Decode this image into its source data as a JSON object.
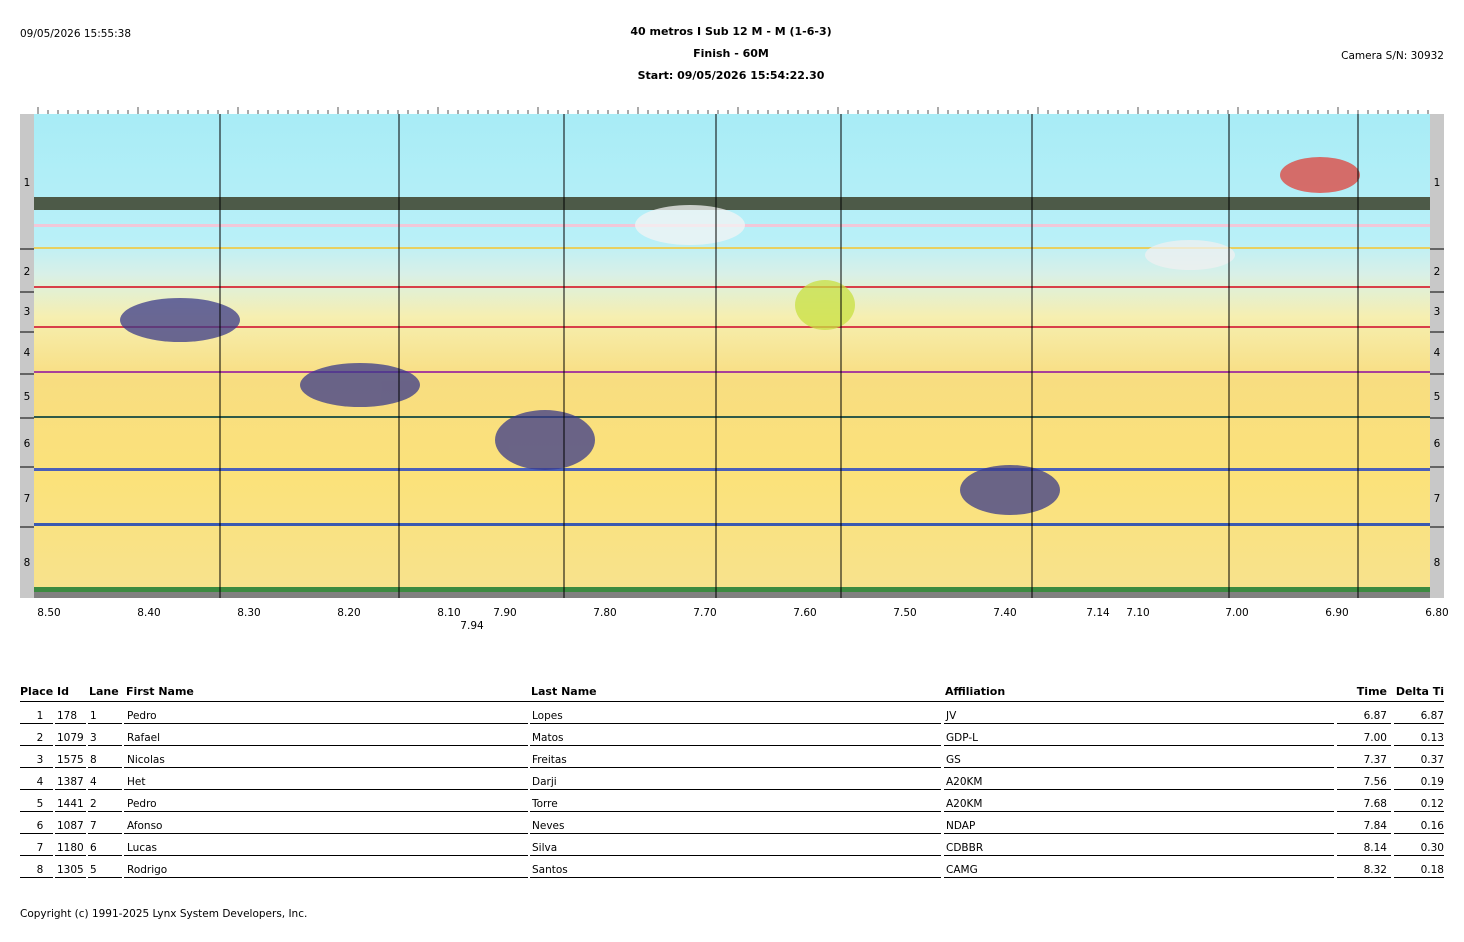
{
  "header": {
    "printed": "09/05/2026 15:55:38",
    "title": "40 metros I Sub 12 M - M (1-6-3)",
    "finish": "Finish - 60M",
    "start": "Start: 09/05/2026 15:54:22.30",
    "camera": "Camera S/N: 30932"
  },
  "lanes": [
    "1",
    "2",
    "3",
    "4",
    "5",
    "6",
    "7",
    "8"
  ],
  "time_labels": [
    "8.50",
    "8.40",
    "8.30",
    "8.20",
    "8.10",
    "7.94",
    "7.90",
    "7.80",
    "7.70",
    "7.60",
    "7.50",
    "7.40",
    "7.14",
    "7.10",
    "7.00",
    "6.90",
    "6.80"
  ],
  "table": {
    "columns": [
      "Place",
      "Id",
      "Lane",
      "First Name",
      "Last Name",
      "Affiliation",
      "Time",
      "Delta Ti"
    ],
    "rows": [
      [
        "1",
        "178",
        "1",
        "Pedro",
        "Lopes",
        "JV",
        "6.87",
        "6.87"
      ],
      [
        "2",
        "1079",
        "3",
        "Rafael",
        "Matos",
        "GDP-L",
        "7.00",
        "0.13"
      ],
      [
        "3",
        "1575",
        "8",
        "Nicolas",
        "Freitas",
        "GS",
        "7.37",
        "0.37"
      ],
      [
        "4",
        "1387",
        "4",
        "Het",
        "Darji",
        "A20KM",
        "7.56",
        "0.19"
      ],
      [
        "5",
        "1441",
        "2",
        "Pedro",
        "Torre",
        "A20KM",
        "7.68",
        "0.12"
      ],
      [
        "6",
        "1087",
        "7",
        "Afonso",
        "Neves",
        "NDAP",
        "7.84",
        "0.16"
      ],
      [
        "7",
        "1180",
        "6",
        "Lucas",
        "Silva",
        "CDBBR",
        "8.14",
        "0.30"
      ],
      [
        "8",
        "1305",
        "5",
        "Rodrigo",
        "Santos",
        "CAMG",
        "8.32",
        "0.18"
      ]
    ]
  },
  "footer": "Copyright (c) 1991-2025 Lynx System Developers, Inc."
}
